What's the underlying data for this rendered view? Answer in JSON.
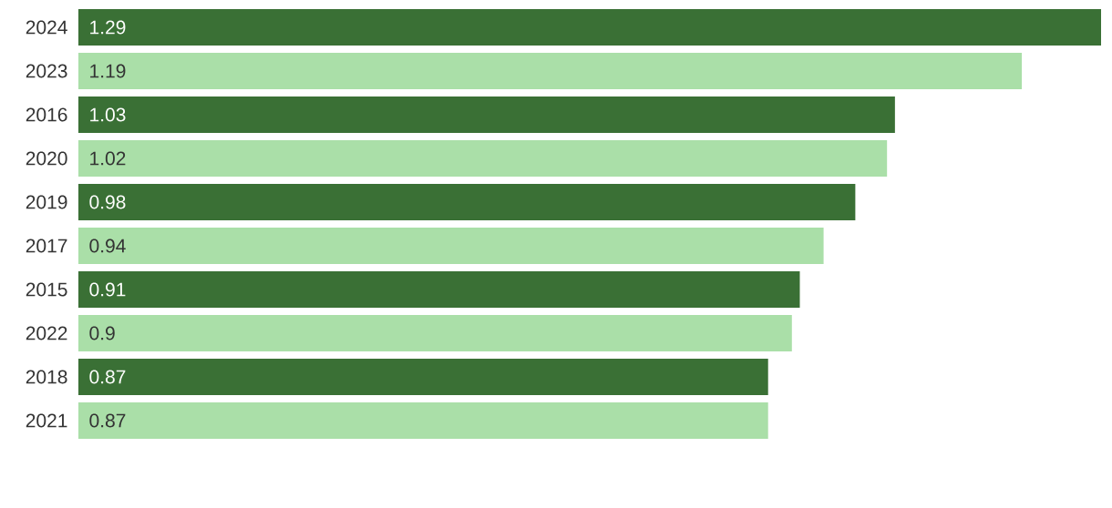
{
  "chart_data": {
    "type": "bar",
    "orientation": "horizontal",
    "categories": [
      "2024",
      "2023",
      "2016",
      "2020",
      "2019",
      "2017",
      "2015",
      "2022",
      "2018",
      "2021"
    ],
    "values": [
      1.29,
      1.19,
      1.03,
      1.02,
      0.98,
      0.94,
      0.91,
      0.9,
      0.87,
      0.87
    ],
    "colors": [
      "#3a7035",
      "#aadfa8",
      "#3a7035",
      "#aadfa8",
      "#3a7035",
      "#aadfa8",
      "#3a7035",
      "#aadfa8",
      "#3a7035",
      "#aadfa8"
    ],
    "data_labels": true,
    "tick_labels": "y"
  }
}
